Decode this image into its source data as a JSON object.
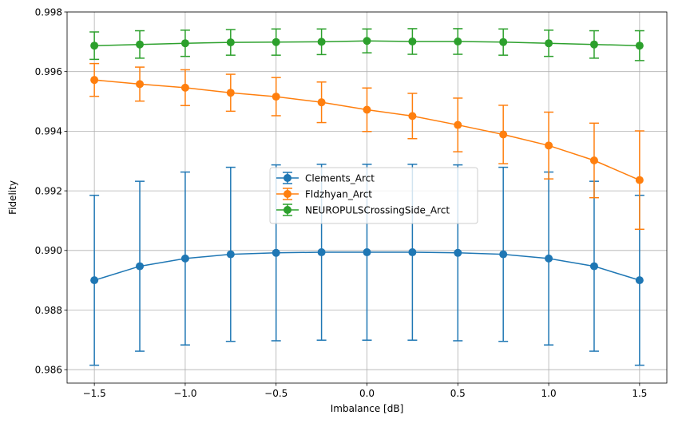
{
  "chart_data": {
    "type": "line",
    "title": "",
    "xlabel": "Imbalance [dB]",
    "ylabel": "Fidelity",
    "xlim": [
      -1.65,
      1.65
    ],
    "ylim": [
      0.98555,
      0.998
    ],
    "x_ticks": [
      -1.5,
      -1.0,
      -0.5,
      0.0,
      0.5,
      1.0,
      1.5
    ],
    "x_tick_labels": [
      "−1.5",
      "−1.0",
      "−0.5",
      "0.0",
      "0.5",
      "1.0",
      "1.5"
    ],
    "y_ticks": [
      0.986,
      0.988,
      0.99,
      0.992,
      0.994,
      0.996,
      0.998
    ],
    "y_tick_labels": [
      "0.986",
      "0.988",
      "0.990",
      "0.992",
      "0.994",
      "0.996",
      "0.998"
    ],
    "grid": true,
    "legend_position": "center",
    "x": [
      -1.5,
      -1.25,
      -1.0,
      -0.75,
      -0.5,
      -0.25,
      0.0,
      0.25,
      0.5,
      0.75,
      1.0,
      1.25,
      1.5
    ],
    "series": [
      {
        "name": "Clements_Arct",
        "color": "#1f77b4",
        "values": [
          0.989,
          0.98947,
          0.98973,
          0.98987,
          0.98992,
          0.98994,
          0.98994,
          0.98994,
          0.98992,
          0.98987,
          0.98973,
          0.98947,
          0.989
        ],
        "errors": [
          0.00285,
          0.00285,
          0.0029,
          0.00292,
          0.00295,
          0.00295,
          0.00295,
          0.00295,
          0.00295,
          0.00292,
          0.0029,
          0.00285,
          0.00285
        ]
      },
      {
        "name": "Fldzhyan_Arct",
        "color": "#ff7f0e",
        "values": [
          0.99572,
          0.99558,
          0.99546,
          0.99529,
          0.99516,
          0.99497,
          0.99472,
          0.99451,
          0.99421,
          0.99389,
          0.99352,
          0.99302,
          0.99236
        ],
        "errors": [
          0.00055,
          0.00057,
          0.0006,
          0.00062,
          0.00064,
          0.00068,
          0.00073,
          0.00076,
          0.0009,
          0.00098,
          0.00112,
          0.00125,
          0.00165
        ]
      },
      {
        "name": "NEUROPULSCrossingSide_Arct",
        "color": "#2ca02c",
        "values": [
          0.99687,
          0.99691,
          0.99695,
          0.99698,
          0.99699,
          0.997,
          0.99703,
          0.99701,
          0.99701,
          0.99699,
          0.99695,
          0.99691,
          0.99687
        ],
        "errors": [
          0.00046,
          0.00046,
          0.00044,
          0.00043,
          0.00044,
          0.00043,
          0.0004,
          0.00043,
          0.00043,
          0.00044,
          0.00044,
          0.00046,
          0.0005
        ]
      }
    ]
  }
}
